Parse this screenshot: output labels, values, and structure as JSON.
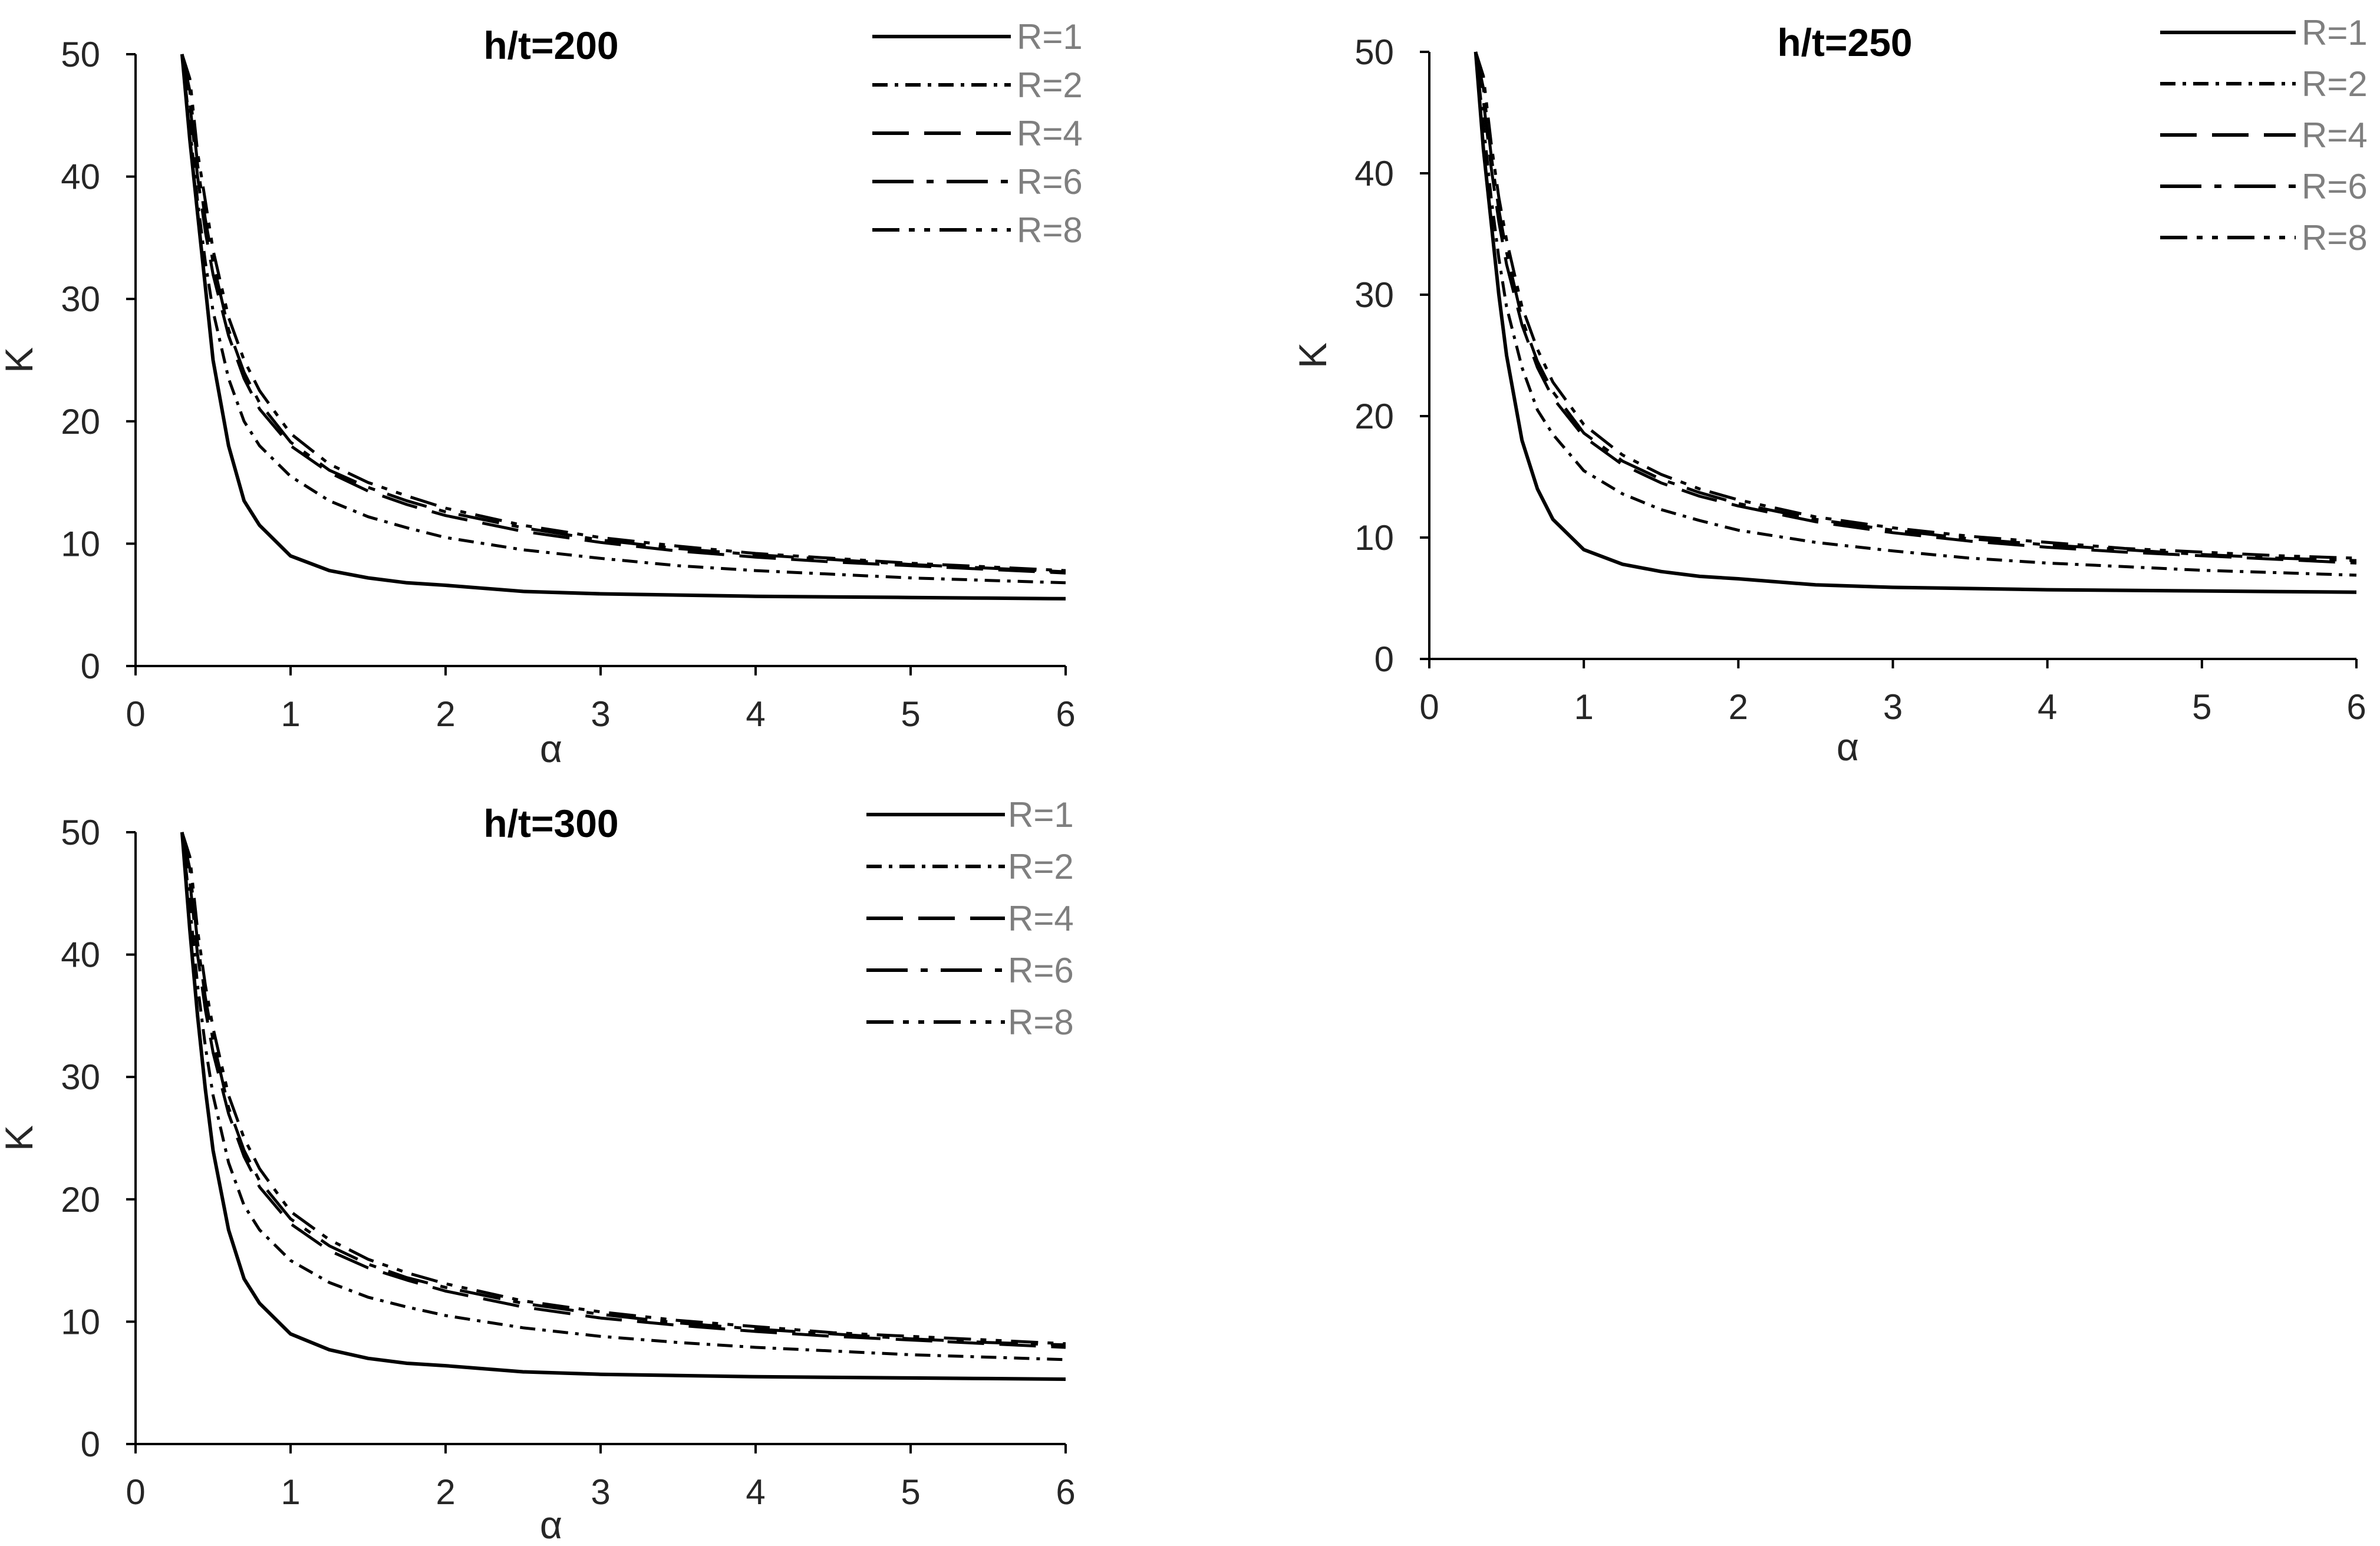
{
  "colors": {
    "line": "#000000",
    "axis": "#000000",
    "text": "#262626",
    "legend_text": "#7f7f7f"
  },
  "series_style": {
    "R=1": "solid",
    "R=2": "dash-dot-dot-fine",
    "R=4": "long-dash",
    "R=6": "dash-dot",
    "R=8": "dash-dot-dot"
  },
  "chart_data": [
    {
      "type": "line",
      "title": "h/t=200",
      "xlabel": "α",
      "ylabel": "K",
      "xlim": [
        0,
        6
      ],
      "ylim": [
        0,
        50
      ],
      "xticks": [
        "0",
        "1",
        "2",
        "3",
        "4",
        "5",
        "6"
      ],
      "yticks": [
        "0",
        "10",
        "20",
        "30",
        "40",
        "50"
      ],
      "grid": false,
      "legend_position": "top-right",
      "x": [
        0.3,
        0.35,
        0.4,
        0.45,
        0.5,
        0.6,
        0.7,
        0.8,
        1.0,
        1.25,
        1.5,
        1.75,
        2.0,
        2.5,
        3.0,
        3.5,
        4.0,
        4.5,
        5.0,
        5.5,
        6.0
      ],
      "series": [
        {
          "name": "R=1",
          "values": [
            50,
            43,
            37,
            31,
            25,
            18,
            13.5,
            11.5,
            9,
            7.8,
            7.2,
            6.8,
            6.6,
            6.1,
            5.9,
            5.8,
            5.7,
            5.65,
            5.6,
            5.55,
            5.5
          ]
        },
        {
          "name": "R=2",
          "values": [
            50,
            44,
            38,
            33,
            29,
            23.5,
            20,
            18,
            15.5,
            13.5,
            12.2,
            11.3,
            10.5,
            9.5,
            8.8,
            8.2,
            7.8,
            7.5,
            7.2,
            7.0,
            6.8
          ]
        },
        {
          "name": "R=4",
          "values": [
            50,
            46,
            40,
            35.5,
            32,
            27,
            23.5,
            21,
            18,
            15.8,
            14.3,
            13.2,
            12.3,
            11.0,
            10.1,
            9.4,
            8.9,
            8.5,
            8.2,
            7.9,
            7.6
          ]
        },
        {
          "name": "R=6",
          "values": [
            50,
            47,
            41,
            36.5,
            33,
            27.5,
            24,
            21.5,
            18.3,
            16,
            14.6,
            13.5,
            12.6,
            11.3,
            10.3,
            9.6,
            9.1,
            8.7,
            8.3,
            8.0,
            7.7
          ]
        },
        {
          "name": "R=8",
          "values": [
            50,
            48,
            42,
            38,
            34,
            28.5,
            25,
            22.5,
            19,
            16.5,
            15,
            13.9,
            12.9,
            11.5,
            10.5,
            9.8,
            9.2,
            8.8,
            8.4,
            8.1,
            7.8
          ]
        }
      ]
    },
    {
      "type": "line",
      "title": "h/t=250",
      "xlabel": "α",
      "ylabel": "K",
      "xlim": [
        0,
        6
      ],
      "ylim": [
        0,
        50
      ],
      "xticks": [
        "0",
        "1",
        "2",
        "3",
        "4",
        "5",
        "6"
      ],
      "yticks": [
        "0",
        "10",
        "20",
        "30",
        "40",
        "50"
      ],
      "grid": false,
      "legend_position": "top-right",
      "x": [
        0.3,
        0.35,
        0.4,
        0.45,
        0.5,
        0.6,
        0.7,
        0.8,
        1.0,
        1.25,
        1.5,
        1.75,
        2.0,
        2.5,
        3.0,
        3.5,
        4.0,
        4.5,
        5.0,
        5.5,
        6.0
      ],
      "series": [
        {
          "name": "R=1",
          "values": [
            50,
            42,
            36,
            30,
            25,
            18,
            14,
            11.5,
            9,
            7.8,
            7.2,
            6.8,
            6.6,
            6.1,
            5.9,
            5.8,
            5.7,
            5.65,
            5.6,
            5.55,
            5.5
          ]
        },
        {
          "name": "R=2",
          "values": [
            50,
            44,
            38,
            33,
            29,
            24,
            20.5,
            18.5,
            15.5,
            13.6,
            12.3,
            11.4,
            10.6,
            9.6,
            8.9,
            8.3,
            7.9,
            7.6,
            7.3,
            7.1,
            6.9
          ]
        },
        {
          "name": "R=4",
          "values": [
            50,
            46,
            40.5,
            36,
            32.5,
            27.5,
            24,
            21.5,
            18.3,
            16,
            14.5,
            13.4,
            12.6,
            11.3,
            10.4,
            9.7,
            9.2,
            8.8,
            8.5,
            8.2,
            7.9
          ]
        },
        {
          "name": "R=6",
          "values": [
            50,
            47,
            41.5,
            37,
            33.5,
            28,
            24.5,
            22,
            18.6,
            16.3,
            14.8,
            13.7,
            12.8,
            11.5,
            10.6,
            9.9,
            9.4,
            9.0,
            8.6,
            8.3,
            8.1
          ]
        },
        {
          "name": "R=8",
          "values": [
            50,
            48,
            42.5,
            38,
            34.5,
            29,
            25.5,
            22.8,
            19.3,
            16.8,
            15.2,
            14.0,
            13.1,
            11.7,
            10.8,
            10.1,
            9.6,
            9.1,
            8.8,
            8.5,
            8.3
          ]
        }
      ]
    },
    {
      "type": "line",
      "title": "h/t=300",
      "xlabel": "α",
      "ylabel": "K",
      "xlim": [
        0,
        6
      ],
      "ylim": [
        0,
        50
      ],
      "xticks": [
        "0",
        "1",
        "2",
        "3",
        "4",
        "5",
        "6"
      ],
      "yticks": [
        "0",
        "10",
        "20",
        "30",
        "40",
        "50"
      ],
      "grid": false,
      "legend_position": "top-right",
      "x": [
        0.3,
        0.35,
        0.4,
        0.45,
        0.5,
        0.6,
        0.7,
        0.8,
        1.0,
        1.25,
        1.5,
        1.75,
        2.0,
        2.5,
        3.0,
        3.5,
        4.0,
        4.5,
        5.0,
        5.5,
        6.0
      ],
      "series": [
        {
          "name": "R=1",
          "values": [
            50,
            42,
            35,
            29,
            24,
            17.5,
            13.5,
            11.5,
            9,
            7.7,
            7.0,
            6.6,
            6.4,
            5.9,
            5.7,
            5.6,
            5.5,
            5.45,
            5.4,
            5.35,
            5.3
          ]
        },
        {
          "name": "R=2",
          "values": [
            50,
            44,
            37.5,
            32.5,
            28.5,
            23,
            19.5,
            17.5,
            15,
            13.2,
            12.0,
            11.2,
            10.5,
            9.5,
            8.8,
            8.3,
            7.9,
            7.6,
            7.3,
            7.1,
            6.9
          ]
        },
        {
          "name": "R=4",
          "values": [
            50,
            46,
            40,
            35.5,
            32,
            27,
            23.5,
            21,
            18,
            15.8,
            14.4,
            13.4,
            12.5,
            11.2,
            10.3,
            9.7,
            9.2,
            8.8,
            8.5,
            8.2,
            7.9
          ]
        },
        {
          "name": "R=6",
          "values": [
            50,
            47,
            41,
            36.5,
            33,
            27.5,
            24,
            21.5,
            18.4,
            16.2,
            14.7,
            13.6,
            12.8,
            11.5,
            10.6,
            9.9,
            9.4,
            9.0,
            8.6,
            8.3,
            8.1
          ]
        },
        {
          "name": "R=8",
          "values": [
            50,
            48,
            42,
            37.5,
            34,
            28.5,
            25,
            22.5,
            19,
            16.7,
            15.1,
            14.0,
            13.1,
            11.7,
            10.8,
            10.1,
            9.6,
            9.1,
            8.8,
            8.5,
            8.2
          ]
        }
      ]
    }
  ]
}
